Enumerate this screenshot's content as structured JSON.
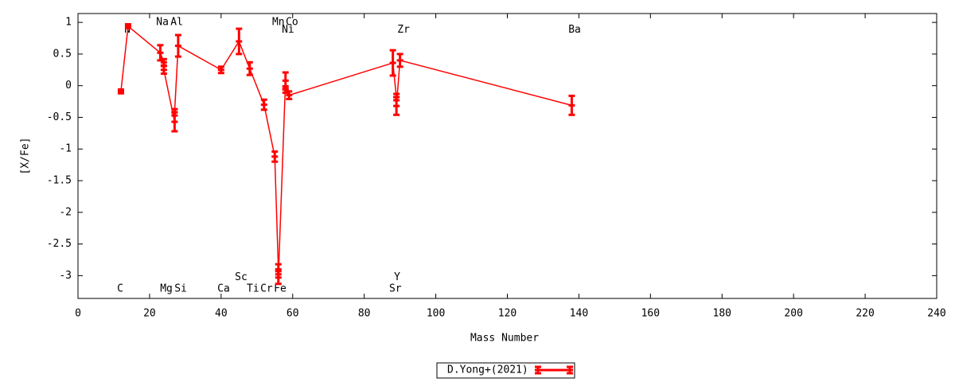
{
  "chart_data": {
    "type": "line",
    "x_label": "Mass Number",
    "y_label": "[X/Fe]",
    "xlim": [
      0,
      240
    ],
    "xticks": [
      0,
      20,
      40,
      60,
      80,
      100,
      120,
      140,
      160,
      180,
      200,
      220,
      240
    ],
    "ylim": [
      -3.36,
      1.14
    ],
    "yticks": [
      1,
      0.5,
      0,
      -0.5,
      -1,
      -1.5,
      -2,
      -2.5,
      -3
    ],
    "grid": false,
    "legend": "bottom",
    "annotations": [
      "C",
      "N",
      "Na",
      "Mg",
      "Al",
      "Si",
      "Ca",
      "Sc",
      "Ti",
      "Cr",
      "Mn",
      "Fe",
      "Co",
      "Ni",
      "Sr",
      "Y",
      "Zr",
      "Ba"
    ],
    "series": [
      {
        "name": "D.Yong+(2021)",
        "color": "#ff0000",
        "x": [
          12,
          14,
          23,
          24,
          24,
          27,
          27,
          28,
          40,
          45,
          48,
          52,
          55,
          56,
          56,
          58,
          58,
          59,
          88,
          89,
          89,
          90,
          138
        ],
        "values": [
          -0.09,
          0.94,
          0.52,
          0.37,
          0.25,
          -0.57,
          -0.42,
          0.63,
          0.25,
          0.7,
          0.27,
          -0.3,
          -1.12,
          -2.9,
          -3.03,
          0.08,
          -0.06,
          -0.15,
          0.36,
          -0.18,
          -0.32,
          0.4,
          -0.31
        ],
        "errors": [
          0.03,
          0.03,
          0.12,
          0.05,
          0.06,
          0.15,
          0.05,
          0.17,
          0.05,
          0.2,
          0.1,
          0.08,
          0.08,
          0.08,
          0.1,
          0.13,
          0.05,
          0.06,
          0.2,
          0.05,
          0.14,
          0.1,
          0.15
        ]
      }
    ]
  }
}
